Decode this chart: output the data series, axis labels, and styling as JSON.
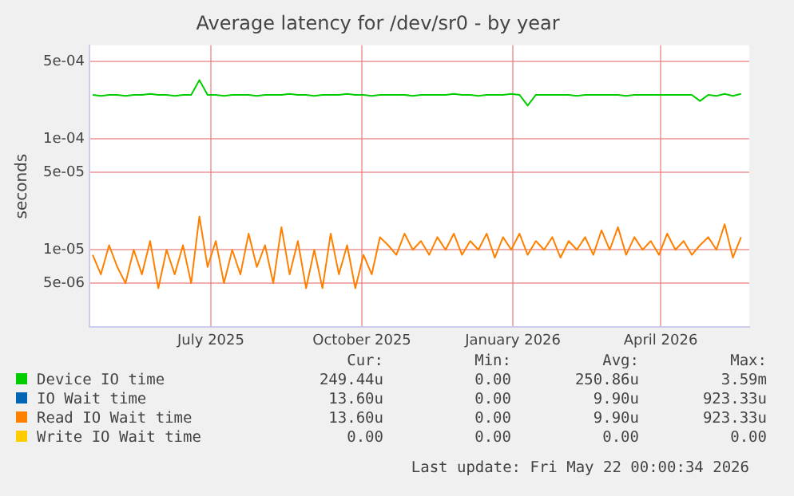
{
  "chart_data": {
    "type": "line",
    "title": "Average latency for /dev/sr0 - by year",
    "ylabel": "seconds",
    "log": "y",
    "grid": true,
    "legend": "bottom",
    "marker": "none",
    "line_style": "solid",
    "xlim": [
      "2025-04-18",
      "2026-05-25"
    ],
    "xticks": [
      {
        "value": "2025-07-01",
        "label": "July 2025"
      },
      {
        "value": "2025-10-01",
        "label": "October 2025"
      },
      {
        "value": "2026-01-01",
        "label": "January 2026"
      },
      {
        "value": "2026-04-01",
        "label": "April 2026"
      }
    ],
    "ylim": [
      2e-06,
      0.0007
    ],
    "yticks": [
      {
        "value": 5e-06,
        "label": "5e-06"
      },
      {
        "value": 1e-05,
        "label": "1e-05"
      },
      {
        "value": 5e-05,
        "label": "5e-05"
      },
      {
        "value": 0.0001,
        "label": "1e-04"
      },
      {
        "value": 0.0005,
        "label": "5e-04"
      }
    ],
    "x": [
      "2025-04-20",
      "2025-04-25",
      "2025-04-30",
      "2025-05-05",
      "2025-05-10",
      "2025-05-15",
      "2025-05-20",
      "2025-05-25",
      "2025-05-30",
      "2025-06-04",
      "2025-06-09",
      "2025-06-14",
      "2025-06-19",
      "2025-06-24",
      "2025-06-29",
      "2025-07-04",
      "2025-07-09",
      "2025-07-14",
      "2025-07-19",
      "2025-07-24",
      "2025-07-29",
      "2025-08-03",
      "2025-08-08",
      "2025-08-13",
      "2025-08-18",
      "2025-08-23",
      "2025-08-28",
      "2025-09-02",
      "2025-09-07",
      "2025-09-12",
      "2025-09-17",
      "2025-09-22",
      "2025-09-27",
      "2025-10-02",
      "2025-10-07",
      "2025-10-12",
      "2025-10-17",
      "2025-10-22",
      "2025-10-27",
      "2025-11-01",
      "2025-11-06",
      "2025-11-11",
      "2025-11-16",
      "2025-11-21",
      "2025-11-26",
      "2025-12-01",
      "2025-12-06",
      "2025-12-11",
      "2025-12-16",
      "2025-12-21",
      "2025-12-26",
      "2025-12-31",
      "2026-01-05",
      "2026-01-10",
      "2026-01-15",
      "2026-01-20",
      "2026-01-25",
      "2026-01-30",
      "2026-02-04",
      "2026-02-09",
      "2026-02-14",
      "2026-02-19",
      "2026-02-24",
      "2026-03-01",
      "2026-03-06",
      "2026-03-11",
      "2026-03-16",
      "2026-03-21",
      "2026-03-26",
      "2026-03-31",
      "2026-04-05",
      "2026-04-10",
      "2026-04-15",
      "2026-04-20",
      "2026-04-25",
      "2026-04-30",
      "2026-05-05",
      "2026-05-10",
      "2026-05-15",
      "2026-05-20"
    ],
    "series": [
      {
        "name": "Device IO time",
        "color": "#00cc00",
        "values": [
          0.00025,
          0.000245,
          0.00025,
          0.00025,
          0.000245,
          0.00025,
          0.00025,
          0.000255,
          0.00025,
          0.00025,
          0.000245,
          0.00025,
          0.00025,
          0.00034,
          0.00025,
          0.00025,
          0.000245,
          0.00025,
          0.00025,
          0.00025,
          0.000245,
          0.00025,
          0.00025,
          0.00025,
          0.000255,
          0.00025,
          0.00025,
          0.000245,
          0.00025,
          0.00025,
          0.00025,
          0.000255,
          0.00025,
          0.00025,
          0.000245,
          0.00025,
          0.00025,
          0.00025,
          0.00025,
          0.000245,
          0.00025,
          0.00025,
          0.00025,
          0.00025,
          0.000255,
          0.00025,
          0.00025,
          0.000245,
          0.00025,
          0.00025,
          0.00025,
          0.000255,
          0.00025,
          0.0002,
          0.00025,
          0.00025,
          0.00025,
          0.00025,
          0.00025,
          0.000245,
          0.00025,
          0.00025,
          0.00025,
          0.00025,
          0.00025,
          0.000245,
          0.00025,
          0.00025,
          0.00025,
          0.00025,
          0.00025,
          0.00025,
          0.00025,
          0.00025,
          0.00022,
          0.00025,
          0.000245,
          0.000255,
          0.000245,
          0.000255
        ]
      },
      {
        "name": "IO Wait time",
        "color": "#0066b3",
        "values": [
          null,
          null,
          null,
          null,
          null,
          null,
          null,
          null,
          null,
          null,
          null,
          null,
          null,
          null,
          null,
          null,
          null,
          null,
          null,
          null,
          null,
          null,
          null,
          null,
          null,
          null,
          null,
          null,
          null,
          null,
          null,
          null,
          null,
          null,
          null,
          null,
          null,
          null,
          null,
          null,
          null,
          null,
          null,
          null,
          null,
          null,
          null,
          null,
          null,
          null,
          null,
          null,
          null,
          null,
          null,
          null,
          null,
          null,
          null,
          null,
          null,
          null,
          null,
          null,
          null,
          null,
          null,
          null,
          null,
          null,
          null,
          null,
          null,
          null,
          null,
          null,
          null,
          null,
          null,
          null
        ]
      },
      {
        "name": "Read IO Wait time",
        "color": "#ff8000",
        "values": [
          9e-06,
          6e-06,
          1.1e-05,
          7e-06,
          5e-06,
          1e-05,
          6e-06,
          1.2e-05,
          4.5e-06,
          1e-05,
          6e-06,
          1.1e-05,
          5e-06,
          2e-05,
          7e-06,
          1.2e-05,
          5e-06,
          1e-05,
          6e-06,
          1.4e-05,
          7e-06,
          1.1e-05,
          5e-06,
          1.6e-05,
          6e-06,
          1.2e-05,
          4.5e-06,
          1e-05,
          4.5e-06,
          1.4e-05,
          6e-06,
          1.1e-05,
          4.5e-06,
          9e-06,
          6e-06,
          1.3e-05,
          1.1e-05,
          9e-06,
          1.4e-05,
          1e-05,
          1.2e-05,
          9e-06,
          1.3e-05,
          1e-05,
          1.4e-05,
          9e-06,
          1.2e-05,
          1e-05,
          1.4e-05,
          8.5e-06,
          1.3e-05,
          1e-05,
          1.4e-05,
          9e-06,
          1.2e-05,
          1e-05,
          1.3e-05,
          8.5e-06,
          1.2e-05,
          1e-05,
          1.3e-05,
          9e-06,
          1.5e-05,
          1e-05,
          1.6e-05,
          9e-06,
          1.3e-05,
          1e-05,
          1.2e-05,
          9e-06,
          1.4e-05,
          1e-05,
          1.2e-05,
          9e-06,
          1.1e-05,
          1.3e-05,
          1e-05,
          1.7e-05,
          8.5e-06,
          1.3e-05
        ]
      },
      {
        "name": "Write IO Wait time",
        "color": "#ffcc00",
        "values": [
          null,
          null,
          null,
          null,
          null,
          null,
          null,
          null,
          null,
          null,
          null,
          null,
          null,
          null,
          null,
          null,
          null,
          null,
          null,
          null,
          null,
          null,
          null,
          null,
          null,
          null,
          null,
          null,
          null,
          null,
          null,
          null,
          null,
          null,
          null,
          null,
          null,
          null,
          null,
          null,
          null,
          null,
          null,
          null,
          null,
          null,
          null,
          null,
          null,
          null,
          null,
          null,
          null,
          null,
          null,
          null,
          null,
          null,
          null,
          null,
          null,
          null,
          null,
          null,
          null,
          null,
          null,
          null,
          null,
          null,
          null,
          null,
          null,
          null,
          null,
          null,
          null,
          null,
          null,
          null
        ]
      }
    ],
    "annotations": [
      "Cur:",
      "Min:",
      "Avg:",
      "Max:",
      "249.44u",
      "0.00",
      "250.86u",
      "3.59m",
      "13.60u",
      "0.00",
      "9.90u",
      "923.33u",
      "13.60u",
      "0.00",
      "9.90u",
      "923.33u",
      "0.00",
      "0.00",
      "0.00",
      "0.00",
      "Last update: Fri May 22 00:00:34 2026"
    ]
  }
}
